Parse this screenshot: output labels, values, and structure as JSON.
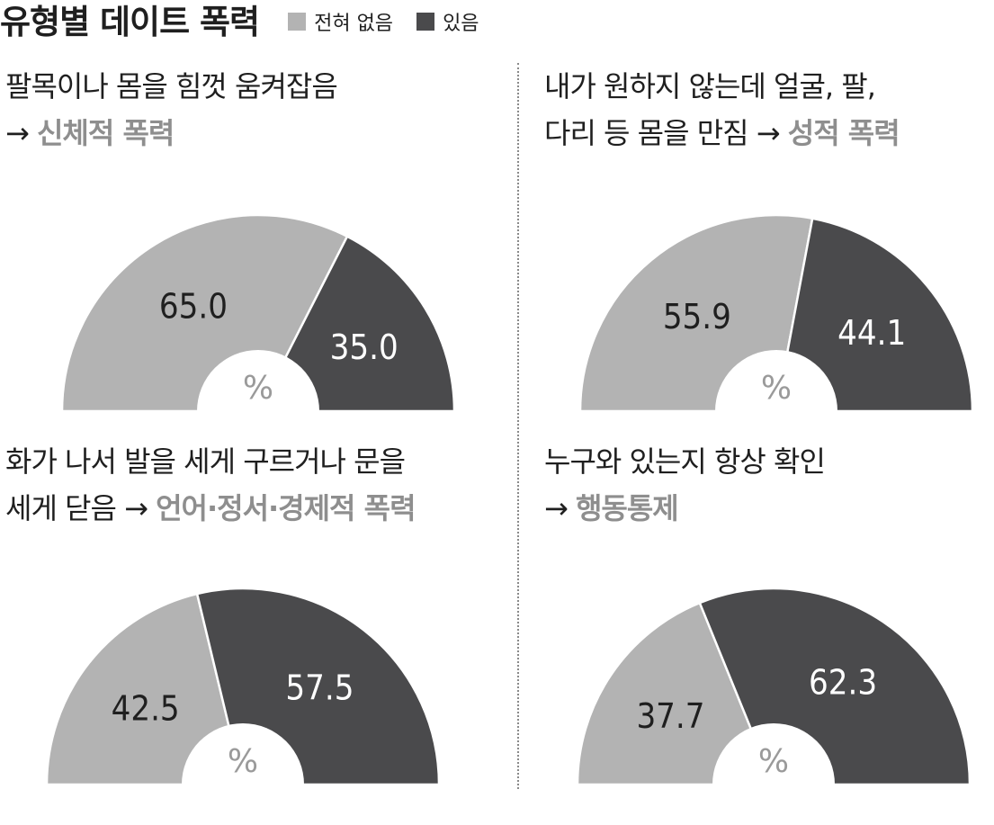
{
  "colors": {
    "none": "#b3b3b3",
    "yes": "#4a4a4c",
    "hole": "#ffffff",
    "label_on_dark": "#ffffff",
    "label_on_light": "#1f1f1f",
    "highlight": "#8e8e8e"
  },
  "header": {
    "title": "유형별 데이트 폭력"
  },
  "chart_data": [
    {
      "type": "pie",
      "categories": [
        "전혀 없음",
        "있음"
      ],
      "values": [
        65.0,
        35.0
      ],
      "value_labels": [
        "65.0",
        "35.0"
      ],
      "unit": "%",
      "title_lines": [
        {
          "text": "팔목이나 몸을 힘껏 움켜잡음",
          "highlight": ""
        },
        {
          "text": "→ ",
          "highlight": "신체적 폭력"
        }
      ],
      "legend": "top"
    },
    {
      "type": "pie",
      "categories": [
        "전혀 없음",
        "있음"
      ],
      "values": [
        55.9,
        44.1
      ],
      "value_labels": [
        "55.9",
        "44.1"
      ],
      "unit": "%",
      "title_lines": [
        {
          "text": "내가 원하지 않는데 얼굴, 팔,",
          "highlight": ""
        },
        {
          "text": "다리 등 몸을 만짐 → ",
          "highlight": "성적  폭력"
        }
      ],
      "legend": "top"
    },
    {
      "type": "pie",
      "categories": [
        "전혀 없음",
        "있음"
      ],
      "values": [
        42.5,
        57.5
      ],
      "value_labels": [
        "42.5",
        "57.5"
      ],
      "unit": "%",
      "title_lines": [
        {
          "text": "화가 나서 발을 세게 구르거나 문을",
          "highlight": ""
        },
        {
          "text": "세게 닫음 → ",
          "highlight": "언어·정서·경제적 폭력"
        }
      ],
      "legend": "top"
    },
    {
      "type": "pie",
      "categories": [
        "전혀 없음",
        "있음"
      ],
      "values": [
        37.7,
        62.3
      ],
      "value_labels": [
        "37.7",
        "62.3"
      ],
      "unit": "%",
      "title_lines": [
        {
          "text": "누구와 있는지 항상 확인",
          "highlight": ""
        },
        {
          "text": "→ ",
          "highlight": "행동통제"
        }
      ],
      "legend": "top"
    }
  ]
}
